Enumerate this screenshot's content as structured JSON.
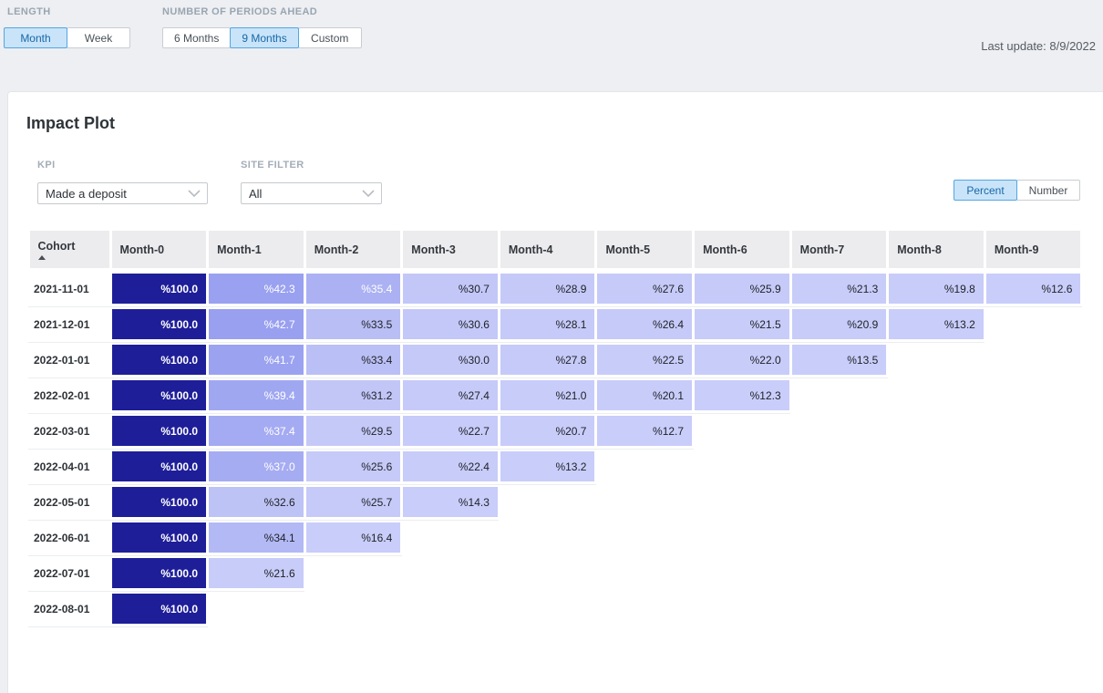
{
  "topbar": {
    "length": {
      "label": "LENGTH",
      "options": [
        "Month",
        "Week"
      ],
      "selected": "Month"
    },
    "periods": {
      "label": "NUMBER OF PERIODS AHEAD",
      "options": [
        "6 Months",
        "9 Months",
        "Custom"
      ],
      "selected": "9 Months"
    },
    "last_update": "Last update: 8/9/2022"
  },
  "panel": {
    "title": "Impact Plot",
    "kpi": {
      "label": "KPI",
      "value": "Made a deposit"
    },
    "site_filter": {
      "label": "SITE FILTER",
      "value": "All"
    },
    "display_mode": {
      "options": [
        "Percent",
        "Number"
      ],
      "selected": "Percent"
    }
  },
  "chart_data": {
    "type": "heatmap",
    "title": "Impact Plot",
    "value_prefix": "%",
    "columns": [
      "Cohort",
      "Month-0",
      "Month-1",
      "Month-2",
      "Month-3",
      "Month-4",
      "Month-5",
      "Month-6",
      "Month-7",
      "Month-8",
      "Month-9"
    ],
    "sort": {
      "column": "Cohort",
      "direction": "asc"
    },
    "rows": [
      {
        "cohort": "2021-11-01",
        "values": [
          100.0,
          42.3,
          35.4,
          30.7,
          28.9,
          27.6,
          25.9,
          21.3,
          19.8,
          12.6
        ]
      },
      {
        "cohort": "2021-12-01",
        "values": [
          100.0,
          42.7,
          33.5,
          30.6,
          28.1,
          26.4,
          21.5,
          20.9,
          13.2
        ]
      },
      {
        "cohort": "2022-01-01",
        "values": [
          100.0,
          41.7,
          33.4,
          30.0,
          27.8,
          22.5,
          22.0,
          13.5
        ]
      },
      {
        "cohort": "2022-02-01",
        "values": [
          100.0,
          39.4,
          31.2,
          27.4,
          21.0,
          20.1,
          12.3
        ]
      },
      {
        "cohort": "2022-03-01",
        "values": [
          100.0,
          37.4,
          29.5,
          22.7,
          20.7,
          12.7
        ]
      },
      {
        "cohort": "2022-04-01",
        "values": [
          100.0,
          37.0,
          25.6,
          22.4,
          13.2
        ]
      },
      {
        "cohort": "2022-05-01",
        "values": [
          100.0,
          32.6,
          25.7,
          14.3
        ]
      },
      {
        "cohort": "2022-06-01",
        "values": [
          100.0,
          34.1,
          16.4
        ]
      },
      {
        "cohort": "2022-07-01",
        "values": [
          100.0,
          21.6
        ]
      },
      {
        "cohort": "2022-08-01",
        "values": [
          100.0
        ]
      }
    ],
    "color_scale": {
      "high": "#1e1e99",
      "mid": "#98a0f0",
      "low": "#c9cdfa",
      "white_text_threshold": 35
    }
  },
  "colors": {
    "page_bg": "#edeff2",
    "accent_selected_bg": "#c9e4f9",
    "accent_selected_border": "#54a6e2",
    "accent_selected_text": "#1768a8",
    "header_bg": "#ececee"
  }
}
